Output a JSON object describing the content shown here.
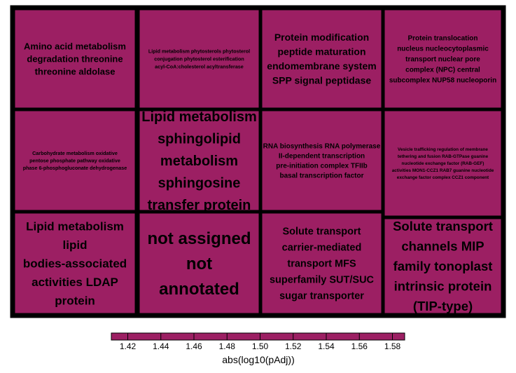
{
  "chart_data": {
    "type": "treemap",
    "fill_color": "#9c1f63",
    "border_color": "#000000",
    "tiles": [
      {
        "label": "Amino acid metabolism degradation threonine threonine aldolase",
        "value": 1
      },
      {
        "label": "Lipid metabolism phytosterols phytosterol conjugation phytosterol esterification acyl-CoA:cholesterol acyltransferase",
        "value": 1
      },
      {
        "label": "Protein modification peptide maturation endomembrane system SPP signal peptidase",
        "value": 1
      },
      {
        "label": "Protein translocation nucleus nucleocytoplasmic transport nuclear pore complex (NPC) central subcomplex NUP58 nucleoporin",
        "value": 1
      },
      {
        "label": "Carbohydrate metabolism oxidative pentose phosphate pathway oxidative phase 6-phosphogluconate dehydrogenase",
        "value": 1
      },
      {
        "label": "Lipid metabolism sphingolipid metabolism sphingosine transfer protein",
        "value": 1
      },
      {
        "label": "RNA biosynthesis RNA polymerase II-dependent transcription pre-initiation complex TFIIb basal transcription factor",
        "value": 1
      },
      {
        "label": "Vesicle trafficking regulation of membrane tethering and fusion RAB-GTPase guanine nucleotide exchange factor (RAB-GEF) activities MON1-CCZ1 RAB7 guanine nucleotide exchange factor complex CCZ1 component",
        "value": 1
      },
      {
        "label": "Lipid metabolism lipid bodies-associated activities LDAP protein",
        "value": 1
      },
      {
        "label": "not assigned not annotated",
        "value": 1
      },
      {
        "label": "Solute transport carrier-mediated transport MFS superfamily SUT/SUC sugar transporter",
        "value": 1
      },
      {
        "label": "Solute transport channels MIP family tonoplast intrinsic protein (TIP-type)",
        "value": 1
      }
    ],
    "legend": {
      "title": "abs(log10(pAdj))",
      "ticks": [
        "1.42",
        "1.44",
        "1.46",
        "1.48",
        "1.50",
        "1.52",
        "1.54",
        "1.56",
        "1.58"
      ]
    }
  }
}
